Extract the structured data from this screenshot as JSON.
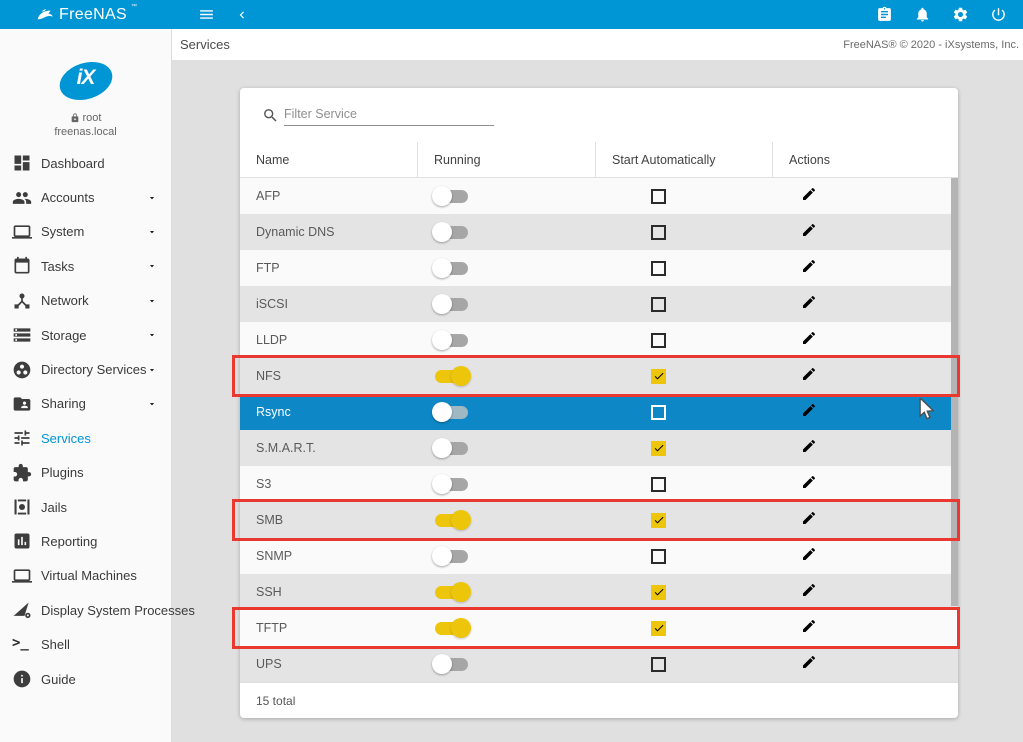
{
  "colors": {
    "brand_blue": "#0095d5",
    "selected_row_blue": "#0d87c6",
    "toggle_yellow": "#edc50a",
    "highlight_red": "#e8382f"
  },
  "topbar": {
    "brand": "FreeNAS",
    "trademark": "™",
    "left_icons": [
      "menu-icon",
      "chevron-left-icon"
    ],
    "right_icons": [
      "task-manager-clipboard-icon",
      "alerts-bell-icon",
      "settings-gear-icon",
      "power-icon"
    ]
  },
  "breadcrumb": {
    "title": "Services",
    "copyright": "FreeNAS® © 2020 - iXsystems, Inc."
  },
  "sidebar": {
    "user": {
      "name": "root",
      "host": "freenas.local",
      "logo_text": "iX",
      "lock_icon": "lock-icon"
    },
    "items": [
      {
        "label": "Dashboard",
        "icon": "dashboard-icon",
        "expandable": false,
        "active": false
      },
      {
        "label": "Accounts",
        "icon": "accounts-icon",
        "expandable": true,
        "active": false
      },
      {
        "label": "System",
        "icon": "system-icon",
        "expandable": true,
        "active": false
      },
      {
        "label": "Tasks",
        "icon": "tasks-icon",
        "expandable": true,
        "active": false
      },
      {
        "label": "Network",
        "icon": "network-icon",
        "expandable": true,
        "active": false
      },
      {
        "label": "Storage",
        "icon": "storage-icon",
        "expandable": true,
        "active": false
      },
      {
        "label": "Directory Services",
        "icon": "directory-services-icon",
        "expandable": true,
        "active": false
      },
      {
        "label": "Sharing",
        "icon": "sharing-icon",
        "expandable": true,
        "active": false
      },
      {
        "label": "Services",
        "icon": "services-icon",
        "expandable": false,
        "active": true
      },
      {
        "label": "Plugins",
        "icon": "plugins-icon",
        "expandable": false,
        "active": false
      },
      {
        "label": "Jails",
        "icon": "jails-icon",
        "expandable": false,
        "active": false
      },
      {
        "label": "Reporting",
        "icon": "reporting-icon",
        "expandable": false,
        "active": false
      },
      {
        "label": "Virtual Machines",
        "icon": "virtual-machines-icon",
        "expandable": false,
        "active": false
      },
      {
        "label": "Display System Processes",
        "icon": "processes-icon",
        "expandable": false,
        "active": false
      },
      {
        "label": "Shell",
        "icon": "shell-icon",
        "expandable": false,
        "active": false
      },
      {
        "label": "Guide",
        "icon": "guide-icon",
        "expandable": false,
        "active": false
      }
    ]
  },
  "services_panel": {
    "filter_placeholder": "Filter Service",
    "columns": [
      "Name",
      "Running",
      "Start Automatically",
      "Actions"
    ],
    "rows": [
      {
        "name": "AFP",
        "running": false,
        "start_auto": false,
        "selected": false,
        "highlighted": false
      },
      {
        "name": "Dynamic DNS",
        "running": false,
        "start_auto": false,
        "selected": false,
        "highlighted": false
      },
      {
        "name": "FTP",
        "running": false,
        "start_auto": false,
        "selected": false,
        "highlighted": false
      },
      {
        "name": "iSCSI",
        "running": false,
        "start_auto": false,
        "selected": false,
        "highlighted": false
      },
      {
        "name": "LLDP",
        "running": false,
        "start_auto": false,
        "selected": false,
        "highlighted": false
      },
      {
        "name": "NFS",
        "running": true,
        "start_auto": true,
        "selected": false,
        "highlighted": true
      },
      {
        "name": "Rsync",
        "running": false,
        "start_auto": false,
        "selected": true,
        "highlighted": false
      },
      {
        "name": "S.M.A.R.T.",
        "running": false,
        "start_auto": true,
        "selected": false,
        "highlighted": false
      },
      {
        "name": "S3",
        "running": false,
        "start_auto": false,
        "selected": false,
        "highlighted": false
      },
      {
        "name": "SMB",
        "running": true,
        "start_auto": true,
        "selected": false,
        "highlighted": true
      },
      {
        "name": "SNMP",
        "running": false,
        "start_auto": false,
        "selected": false,
        "highlighted": false
      },
      {
        "name": "SSH",
        "running": true,
        "start_auto": true,
        "selected": false,
        "highlighted": false
      },
      {
        "name": "TFTP",
        "running": true,
        "start_auto": true,
        "selected": false,
        "highlighted": true
      },
      {
        "name": "UPS",
        "running": false,
        "start_auto": false,
        "selected": false,
        "highlighted": false
      }
    ],
    "total_label": "15 total"
  }
}
